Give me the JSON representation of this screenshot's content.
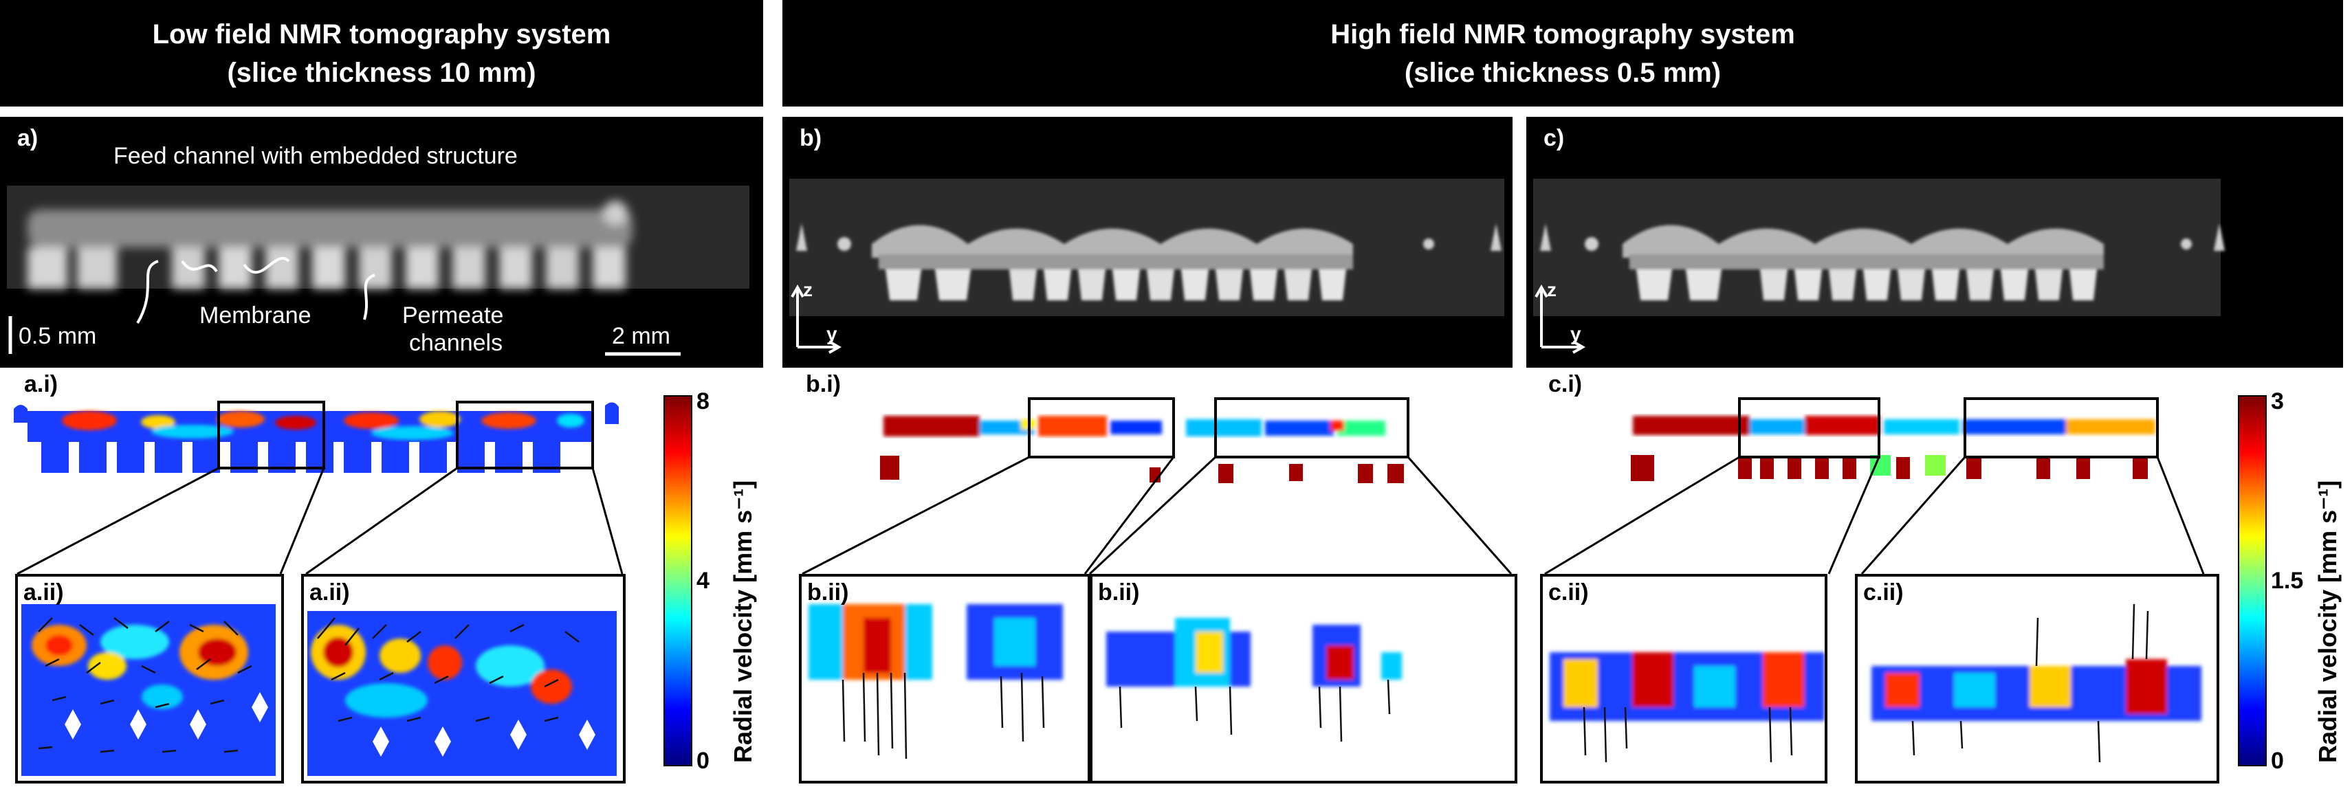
{
  "headers": {
    "low_field": {
      "line1": "Low field NMR tomography system",
      "line2": "(slice thickness 10 mm)"
    },
    "high_field": {
      "line1": "High field NMR tomography system",
      "line2": "(slice thickness 0.5 mm)"
    }
  },
  "panels": {
    "a": {
      "label": "a)",
      "annotations": {
        "feed_channel": "Feed channel with embedded structure",
        "membrane": "Membrane",
        "permeate_line1": "Permeate",
        "permeate_line2": "channels"
      },
      "scalebar_vertical": "0.5 mm",
      "scalebar_horizontal": "2 mm"
    },
    "b": {
      "label": "b)",
      "axis_z": "z",
      "axis_y": "y"
    },
    "c": {
      "label": "c)",
      "axis_z": "z",
      "axis_y": "y"
    },
    "ai": {
      "label": "a.i)"
    },
    "bi": {
      "label": "b.i)"
    },
    "ci": {
      "label": "c.i)"
    },
    "aii_left": {
      "label": "a.ii)"
    },
    "aii_right": {
      "label": "a.ii)"
    },
    "bii_left": {
      "label": "b.ii)"
    },
    "bii_right": {
      "label": "b.ii)"
    },
    "cii_left": {
      "label": "c.ii)"
    },
    "cii_right": {
      "label": "c.ii)"
    }
  },
  "colorbars": {
    "low": {
      "max": "8",
      "mid": "4",
      "min": "0",
      "title": "Radial velocity [mm s⁻¹]",
      "colors": [
        "#00007f",
        "#0000ff",
        "#00ffff",
        "#ffff00",
        "#ff0000",
        "#7f0000"
      ]
    },
    "high": {
      "max": "3",
      "mid": "1.5",
      "min": "0",
      "title": "Radial velocity [mm s⁻¹]",
      "colors": [
        "#00007f",
        "#0000ff",
        "#00ffff",
        "#ffff00",
        "#ff0000",
        "#7f0000"
      ]
    }
  }
}
